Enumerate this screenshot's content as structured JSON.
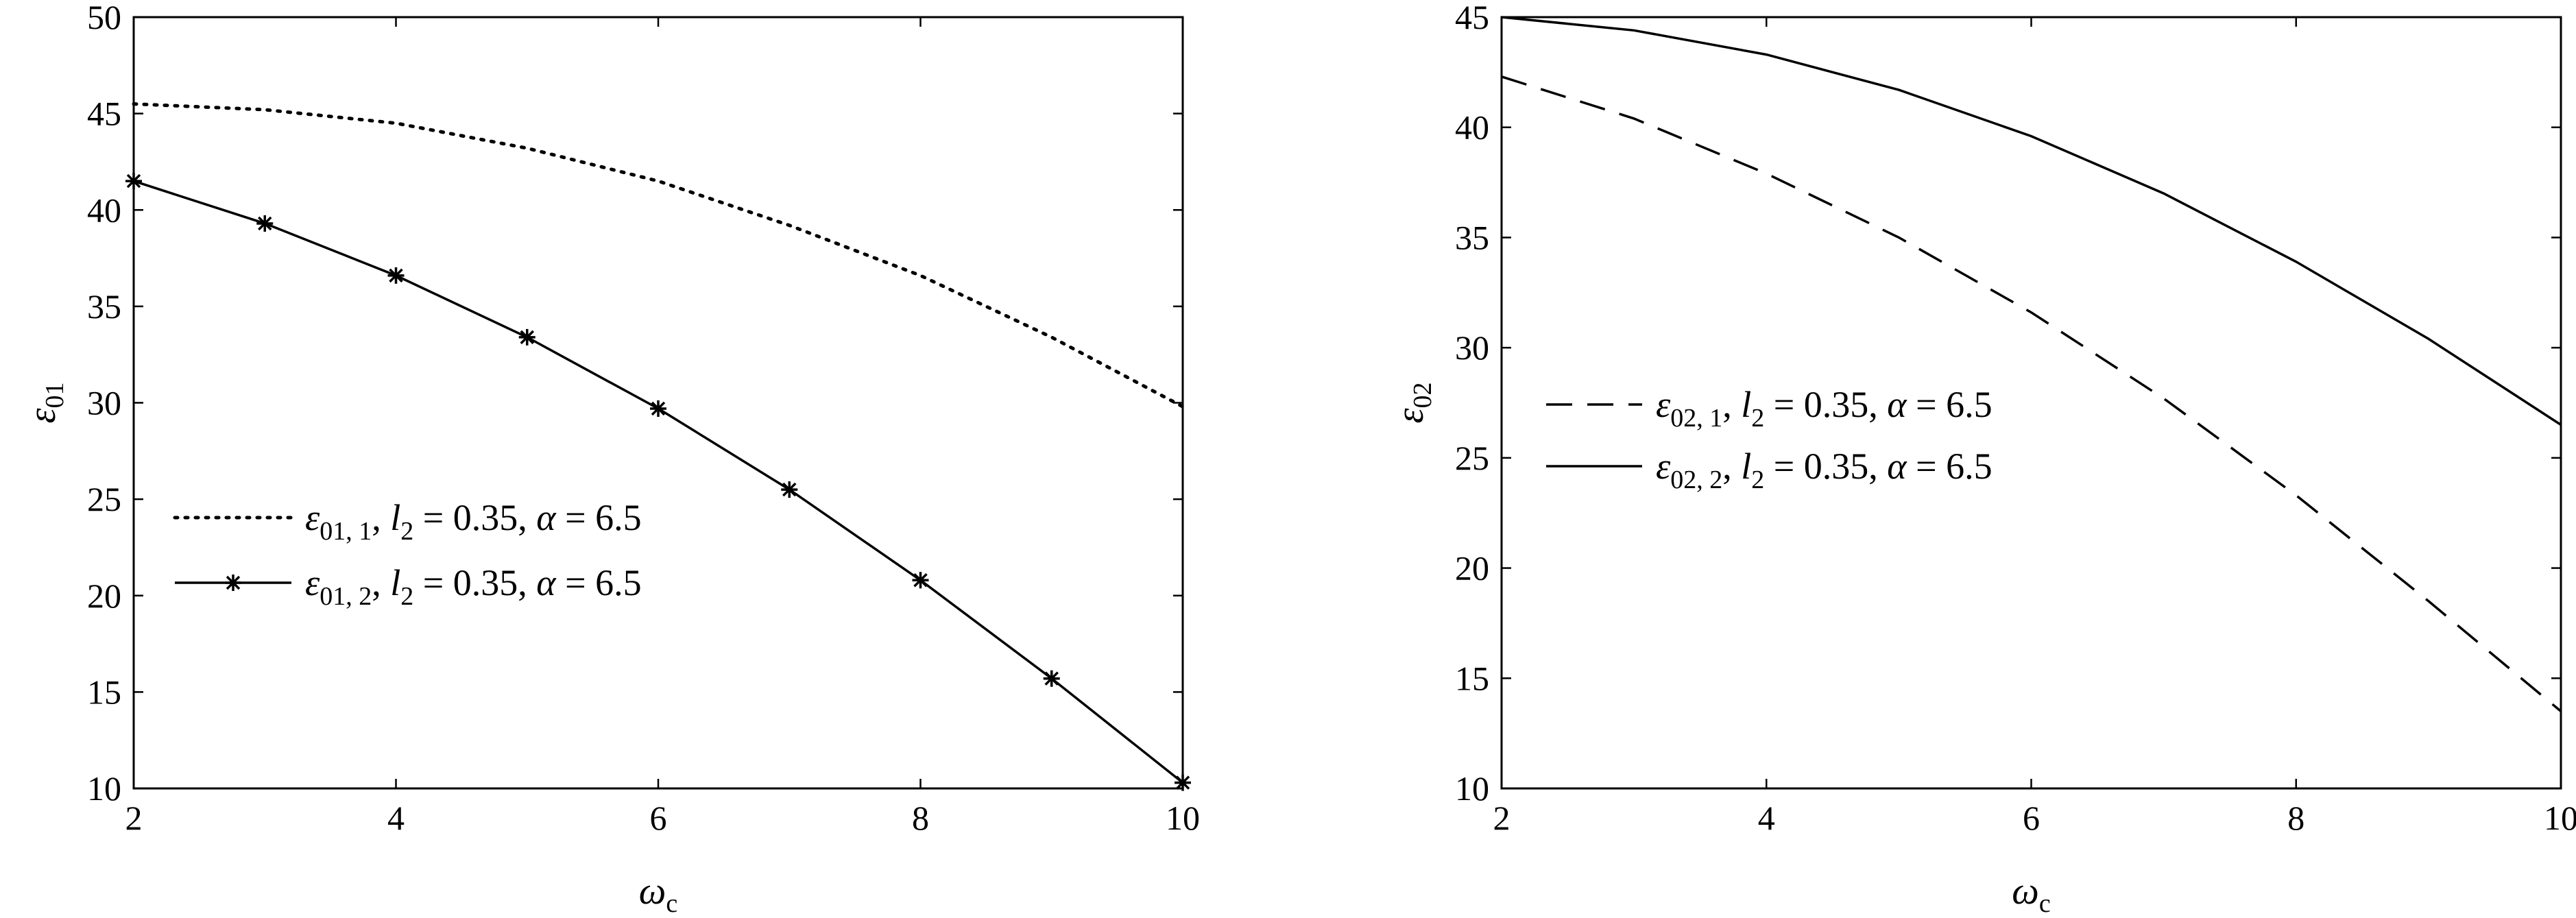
{
  "chart_data": [
    {
      "type": "line",
      "xlabel": "ω",
      "xlabel_sub": "c",
      "ylabel": "ε",
      "ylabel_sub": "01",
      "xlim": [
        2,
        10
      ],
      "ylim": [
        10,
        50
      ],
      "xticks": [
        "2",
        "4",
        "6",
        "8",
        "10"
      ],
      "yticks": [
        "10",
        "15",
        "20",
        "25",
        "30",
        "35",
        "40",
        "45",
        "50"
      ],
      "grid": false,
      "legend_position": "lower-left",
      "series": [
        {
          "name": "ε01, 1, l2 = 0.35, α = 6.5",
          "style": "dotted",
          "x": [
            2,
            3,
            4,
            5,
            6,
            7,
            8,
            9,
            10
          ],
          "y": [
            45.5,
            45.2,
            44.5,
            43.2,
            41.5,
            39.2,
            36.6,
            33.4,
            29.8
          ]
        },
        {
          "name": "ε01, 2, l2 = 0.35, α = 6.5",
          "style": "solid-star",
          "x": [
            2,
            3,
            4,
            5,
            6,
            7,
            8,
            9,
            10
          ],
          "y": [
            41.5,
            39.3,
            36.6,
            33.4,
            29.7,
            25.5,
            20.8,
            15.7,
            10.3
          ]
        }
      ],
      "legend": [
        {
          "sym": "ε",
          "sub": "01, 1",
          "mid": ", ",
          "l": "l",
          "lsub": "2",
          "rest": " = 0.35, ",
          "a": "α",
          "tail": " = 6.5"
        },
        {
          "sym": "ε",
          "sub": "01, 2",
          "mid": ", ",
          "l": "l",
          "lsub": "2",
          "rest": " = 0.35, ",
          "a": "α",
          "tail": " = 6.5"
        }
      ]
    },
    {
      "type": "line",
      "xlabel": "ω",
      "xlabel_sub": "c",
      "ylabel": "ε",
      "ylabel_sub": "02",
      "xlim": [
        2,
        10
      ],
      "ylim": [
        10,
        45
      ],
      "xticks": [
        "2",
        "4",
        "6",
        "8",
        "10"
      ],
      "yticks": [
        "10",
        "15",
        "20",
        "25",
        "30",
        "35",
        "40",
        "45"
      ],
      "grid": false,
      "legend_position": "center-left",
      "series": [
        {
          "name": "ε02, 1, l2 = 0.35, α = 6.5",
          "style": "dashed",
          "x": [
            2,
            3,
            4,
            5,
            6,
            7,
            8,
            9,
            10
          ],
          "y": [
            42.3,
            40.4,
            37.9,
            35.0,
            31.6,
            27.7,
            23.3,
            18.5,
            13.5
          ]
        },
        {
          "name": "ε02, 2, l2 = 0.35, α = 6.5",
          "style": "solid",
          "x": [
            2,
            3,
            4,
            5,
            6,
            7,
            8,
            9,
            10
          ],
          "y": [
            45.0,
            44.4,
            43.3,
            41.7,
            39.6,
            37.0,
            33.9,
            30.4,
            26.5
          ]
        }
      ],
      "legend": [
        {
          "sym": "ε",
          "sub": "02, 1",
          "mid": ", ",
          "l": "l",
          "lsub": "2",
          "rest": " = 0.35, ",
          "a": "α",
          "tail": " = 6.5"
        },
        {
          "sym": "ε",
          "sub": "02, 2",
          "mid": ", ",
          "l": "l",
          "lsub": "2",
          "rest": " = 0.35, ",
          "a": "α",
          "tail": " = 6.5"
        }
      ]
    }
  ]
}
